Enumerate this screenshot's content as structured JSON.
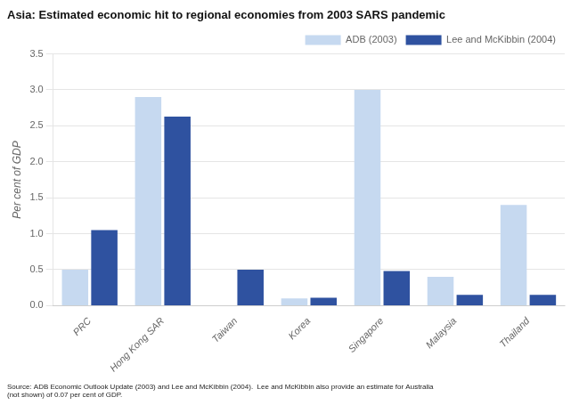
{
  "chart_data": {
    "type": "bar",
    "title": "Asia: Estimated economic hit to regional economies from 2003 SARS pandemic",
    "y_label": "Per cent of GDP",
    "categories": [
      "PRC",
      "Hong Kong SAR",
      "Taiwan",
      "Korea",
      "Singapore",
      "Malaysia",
      "Thailand"
    ],
    "series": [
      {
        "name": "ADB (2003)",
        "color": "#c6d9f0",
        "values": [
          0.5,
          2.9,
          0.0,
          0.1,
          3.0,
          0.4,
          1.4
        ]
      },
      {
        "name": "Lee and McKibbin (2004)",
        "color": "#2f52a0",
        "values": [
          1.05,
          2.63,
          0.5,
          0.11,
          0.48,
          0.15,
          0.15
        ]
      }
    ],
    "ylim": [
      0,
      3.5
    ],
    "yticks": [
      {
        "value": 0,
        "label": "0.0"
      },
      0.5,
      {
        "value": 1,
        "label": "1.0"
      },
      1.5,
      {
        "value": 2,
        "label": "2.0"
      },
      2.5,
      {
        "value": 3,
        "label": "3.0"
      },
      3.5
    ],
    "grid": true,
    "legend": "upper right",
    "source": "Source: ADB Economic Outlook Update (2003) and Lee and McKibbin (2004).  Lee and McKibbin also provide an estimate for Australia\n(not shown) of 0.07 per cent of GDP."
  }
}
